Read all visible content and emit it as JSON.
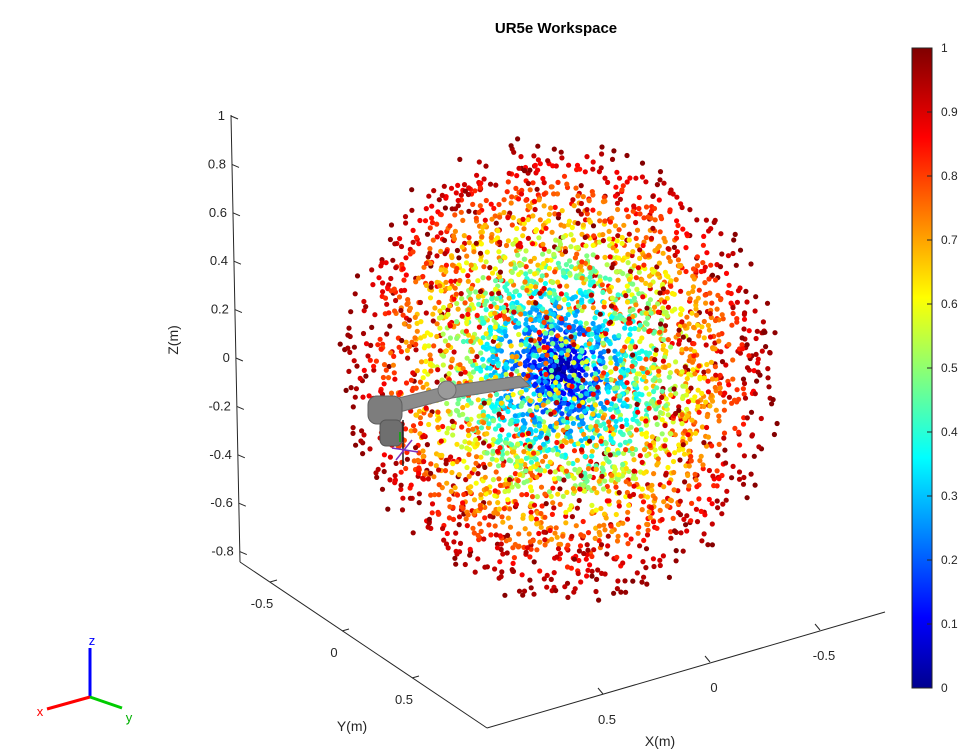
{
  "chart_data": {
    "type": "scatter",
    "title": "UR5e Workspace",
    "xlabel": "X(m)",
    "ylabel": "Y(m)",
    "zlabel": "Z(m)",
    "x_ticks": [
      "-0.5",
      "0",
      "0.5"
    ],
    "y_ticks": [
      "-0.5",
      "0",
      "0.5"
    ],
    "z_ticks": [
      "-0.8",
      "-0.6",
      "-0.4",
      "-0.2",
      "0",
      "0.2",
      "0.4",
      "0.6",
      "0.8",
      "1"
    ],
    "zlim": [
      -0.9,
      1.0
    ],
    "colorbar": {
      "ticks": [
        "0",
        "0.1",
        "0.2",
        "0.3",
        "0.4",
        "0.5",
        "0.6",
        "0.7",
        "0.8",
        "0.9",
        "1"
      ],
      "range": [
        0,
        1
      ],
      "colormap": "jet"
    },
    "workspace": {
      "shape": "sphere",
      "center_z": 0.16,
      "radius": 0.85,
      "color_value": "normalized radial distance from sphere center"
    },
    "robot": {
      "name": "UR5e",
      "base_z": -0.4
    },
    "orientation_triad": {
      "x_label": "x",
      "y_label": "y",
      "z_label": "z"
    },
    "colors": {
      "axis": "#262626",
      "robot": "#8c8c8c",
      "triad_x": "#ff0000",
      "triad_y": "#00cc00",
      "triad_z": "#0000ff"
    }
  }
}
